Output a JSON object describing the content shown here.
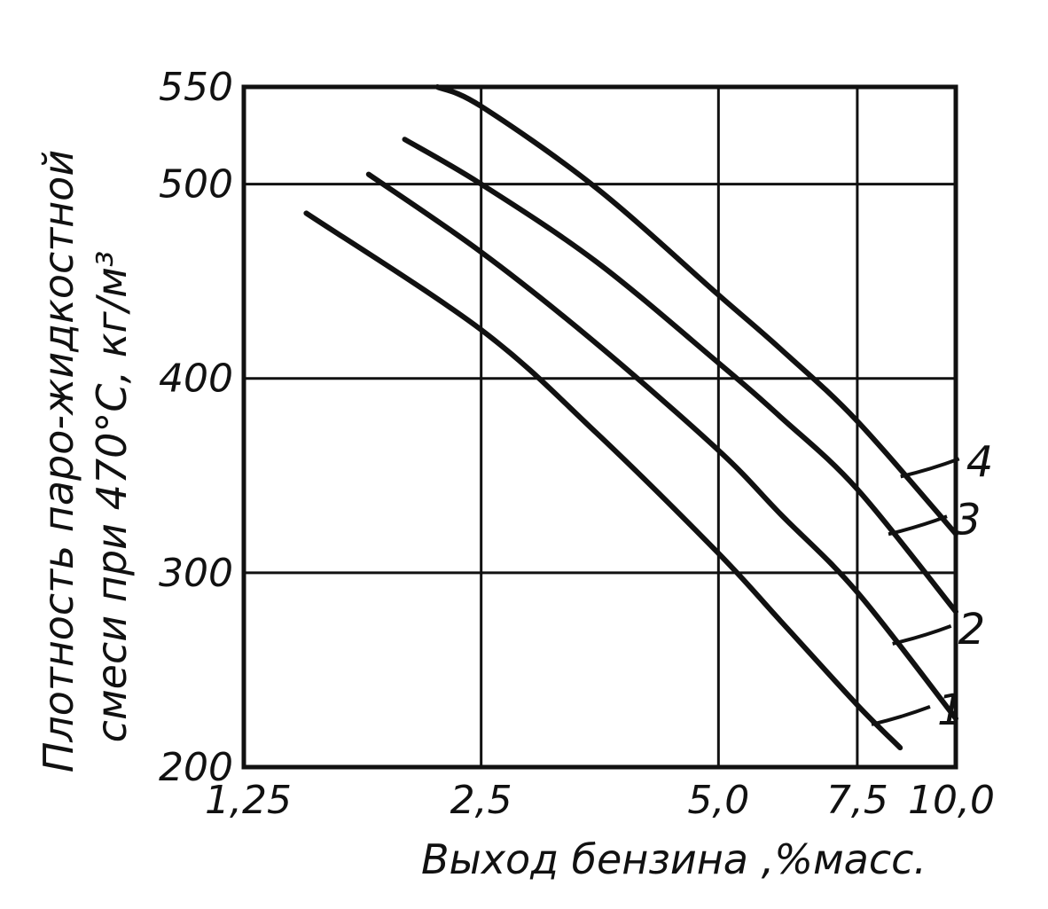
{
  "chart_data": {
    "type": "line",
    "title": "",
    "xlabel": "Выход бензина ,%масс.",
    "ylabel_line1": "Плотность паро-жидкостной",
    "ylabel_line2": "смеси при 470°C, кг/м³",
    "xlim": [
      1.25,
      10.0
    ],
    "ylim": [
      200,
      550
    ],
    "x_scale": "log",
    "x_ticks": [
      1.25,
      2.5,
      5.0,
      7.5,
      10.0
    ],
    "x_tick_labels": [
      "1,25",
      "2,5",
      "5,0",
      "7,5",
      "10,0"
    ],
    "y_ticks": [
      200,
      300,
      400,
      500,
      550
    ],
    "y_tick_labels": [
      "200",
      "300",
      "400",
      "500",
      "550"
    ],
    "grid": true,
    "series": [
      {
        "name": "1",
        "x": [
          1.5,
          2.5,
          3.5,
          5.0,
          6.0,
          7.5,
          8.5
        ],
        "y": [
          485,
          425,
          372,
          310,
          275,
          232,
          210
        ]
      },
      {
        "name": "2",
        "x": [
          1.8,
          2.5,
          3.5,
          5.0,
          6.0,
          7.5,
          10.0
        ],
        "y": [
          505,
          465,
          418,
          363,
          330,
          290,
          225
        ]
      },
      {
        "name": "3",
        "x": [
          2.0,
          2.5,
          3.5,
          5.0,
          6.0,
          7.5,
          10.0
        ],
        "y": [
          523,
          500,
          460,
          408,
          380,
          343,
          280
        ]
      },
      {
        "name": "4",
        "x": [
          2.2,
          2.5,
          3.5,
          5.0,
          6.0,
          7.5,
          10.0
        ],
        "y": [
          550,
          540,
          498,
          443,
          415,
          378,
          320
        ]
      }
    ]
  }
}
